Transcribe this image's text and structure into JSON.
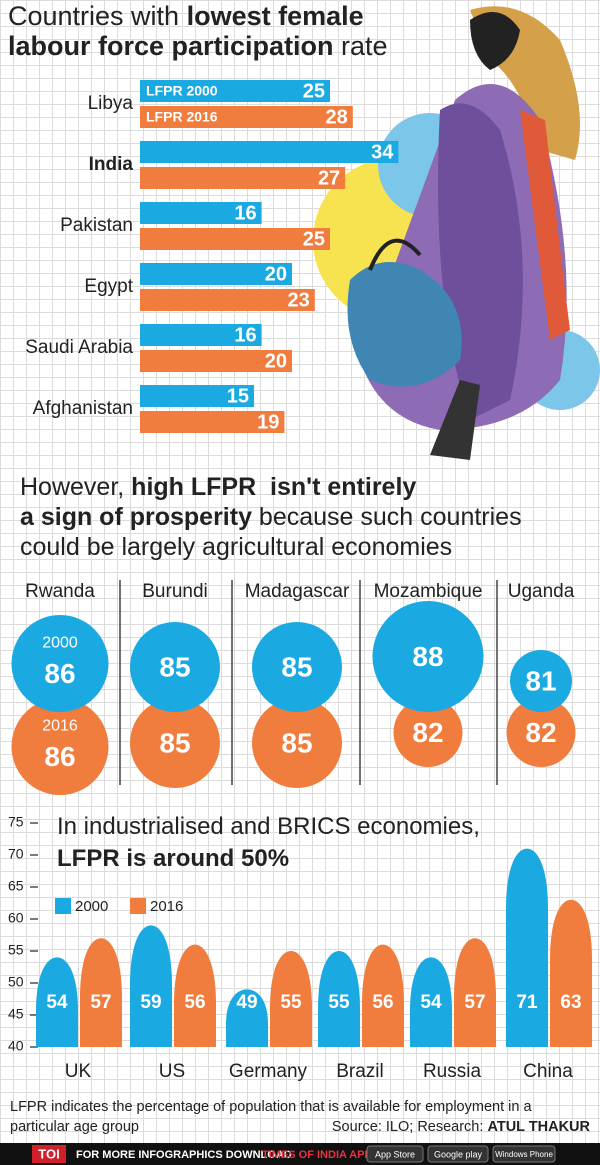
{
  "chart_data": [
    {
      "type": "hbar",
      "title": [
        [
          {
            "text": "Countries with ",
            "bold": false
          },
          {
            "text": "lowest female",
            "bold": true
          }
        ],
        [
          {
            "text": "labour force participation",
            "bold": true
          },
          {
            "text": " rate",
            "bold": false
          }
        ]
      ],
      "categories": [
        "Libya",
        "India",
        "Pakistan",
        "Egypt",
        "Saudi Arabia",
        "Afghanistan"
      ],
      "highlight_index": 1,
      "series": [
        {
          "name": "LFPR 2000",
          "color": "#1ba9e1",
          "values": [
            25,
            34,
            16,
            20,
            16,
            15
          ]
        },
        {
          "name": "LFPR 2016",
          "color": "#f07c3e",
          "values": [
            28,
            27,
            25,
            23,
            20,
            19
          ]
        }
      ]
    },
    {
      "type": "bubble",
      "title": [
        [
          {
            "text": "However, ",
            "bold": false
          },
          {
            "text": "high LFPR  isn't entirely",
            "bold": true
          }
        ],
        [
          {
            "text": "a sign of prosperity",
            "bold": true
          },
          {
            "text": " because such countries",
            "bold": false
          }
        ],
        [
          {
            "text": "could be largely agricultural economies",
            "bold": false
          }
        ]
      ],
      "categories": [
        "Rwanda",
        "Burundi",
        "Madagascar",
        "Mozambique",
        "Uganda"
      ],
      "series": [
        {
          "name": "2000",
          "color": "#1ba9e1",
          "values": [
            86,
            85,
            85,
            88,
            81
          ]
        },
        {
          "name": "2016",
          "color": "#f07c3e",
          "values": [
            86,
            85,
            85,
            82,
            82
          ]
        }
      ]
    },
    {
      "type": "bar",
      "title": [
        [
          {
            "text": "In industrialised and BRICS economies,",
            "bold": false
          }
        ],
        [
          {
            "text": "LFPR is around 50%",
            "bold": true
          }
        ]
      ],
      "categories": [
        "UK",
        "US",
        "Germany",
        "Brazil",
        "Russia",
        "China"
      ],
      "ylim": [
        40,
        75
      ],
      "yticks": [
        40,
        45,
        50,
        55,
        60,
        65,
        70,
        75
      ],
      "series": [
        {
          "name": "2000",
          "color": "#1ba9e1",
          "values": [
            54,
            59,
            49,
            55,
            54,
            71
          ]
        },
        {
          "name": "2016",
          "color": "#f07c3e",
          "values": [
            57,
            56,
            55,
            56,
            57,
            63
          ]
        }
      ]
    }
  ],
  "footer": {
    "note": [
      "LFPR indicates the percentage of population that is available for employment in a",
      "particular age group"
    ],
    "source": [
      {
        "text": "Source: ILO; Research: ",
        "bold": false
      },
      {
        "text": "ATUL THAKUR",
        "bold": true
      }
    ],
    "banner": {
      "brand": "TOI",
      "text": "FOR MORE INFOGRAPHICS DOWNLOAD",
      "app": "TIMES OF INDIA APP",
      "stores": [
        "App Store",
        "Google play",
        "Windows Phone"
      ]
    }
  }
}
